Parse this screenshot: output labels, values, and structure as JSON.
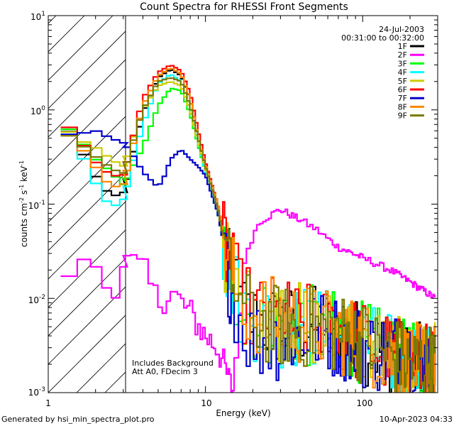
{
  "chart_data": {
    "type": "line",
    "title": "Count Spectra for RHESSI Front Segments",
    "xlabel": "Energy (keV)",
    "ylabel_main": "counts cm",
    "ylabel_sup1": "-2",
    "ylabel_mid": " s",
    "ylabel_sup2": "-1",
    "ylabel_mid2": " keV",
    "ylabel_sup3": "-1",
    "xscale": "log",
    "yscale": "log",
    "xlim": [
      1,
      300
    ],
    "ylim": [
      0.001,
      10
    ],
    "x_tick_labels": [
      "1",
      "10",
      "100"
    ],
    "y_tick_labels": [
      {
        "base": "10",
        "exp": "1"
      },
      {
        "base": "10",
        "exp": "0"
      },
      {
        "base": "10",
        "exp": "-1"
      },
      {
        "base": "10",
        "exp": "-2"
      },
      {
        "base": "10",
        "exp": "-3"
      }
    ],
    "hatched_region_keV": [
      1,
      3
    ],
    "date": "24-Jul-2003",
    "time_range": "00:31:00 to 00:32:00",
    "annotations": [
      "Includes Background",
      "Att A0, FDecim 3"
    ],
    "footer_left": "Generated by hsi_min_spectra_plot.pro",
    "footer_right": "10-Apr-2023 04:33",
    "series": [
      {
        "name": "1F",
        "color": "#000000",
        "kind": "thermal",
        "x": [
          1.2,
          1.5,
          2.0,
          2.5,
          3.0,
          4.0,
          5.0,
          6.0,
          7.0,
          8.0,
          9.0,
          10.0,
          12.0,
          14.0,
          17.0,
          20.0,
          30.0,
          50.0,
          80.0,
          120.0,
          200.0,
          290.0
        ],
        "values": [
          0.75,
          0.48,
          0.2,
          0.12,
          0.13,
          0.9,
          2.2,
          2.7,
          2.3,
          1.3,
          0.5,
          0.25,
          0.09,
          0.02,
          0.008,
          0.006,
          0.005,
          0.005,
          0.004,
          0.003,
          0.002,
          0.002
        ]
      },
      {
        "name": "2F",
        "color": "#ff00ff",
        "kind": "rear",
        "x": [
          1.2,
          1.5,
          2.0,
          2.5,
          3.0,
          4.0,
          5.0,
          6.0,
          8.0,
          10.0,
          12.0,
          15.0,
          18.0,
          22.0,
          30.0,
          40.0,
          50.0,
          70.0,
          100.0,
          150.0,
          200.0,
          290.0
        ],
        "values": [
          0.026,
          0.018,
          0.024,
          0.011,
          0.025,
          0.02,
          0.009,
          0.012,
          0.007,
          0.004,
          0.003,
          0.001,
          0.03,
          0.065,
          0.088,
          0.068,
          0.055,
          0.035,
          0.027,
          0.02,
          0.015,
          0.01
        ]
      },
      {
        "name": "3F",
        "color": "#00ff00",
        "kind": "thermal",
        "x": [
          1.2,
          1.5,
          2.0,
          2.5,
          3.0,
          4.0,
          5.0,
          6.0,
          7.0,
          8.0,
          9.0,
          10.0,
          12.0,
          14.0,
          17.0,
          20.0,
          30.0,
          50.0,
          80.0,
          120.0,
          200.0,
          290.0
        ],
        "values": [
          0.72,
          0.55,
          0.3,
          0.22,
          0.16,
          0.4,
          1.1,
          1.7,
          1.6,
          0.9,
          0.42,
          0.22,
          0.08,
          0.02,
          0.009,
          0.006,
          0.005,
          0.005,
          0.004,
          0.003,
          0.002,
          0.002
        ]
      },
      {
        "name": "4F",
        "color": "#00ffff",
        "kind": "thermal",
        "x": [
          1.2,
          1.5,
          2.0,
          2.5,
          3.0,
          4.0,
          5.0,
          6.0,
          7.0,
          8.0,
          9.0,
          10.0,
          12.0,
          14.0,
          17.0,
          20.0,
          30.0,
          50.0,
          80.0,
          120.0,
          200.0,
          290.0
        ],
        "values": [
          0.7,
          0.45,
          0.17,
          0.09,
          0.11,
          0.7,
          1.9,
          2.4,
          2.0,
          1.1,
          0.45,
          0.22,
          0.08,
          0.02,
          0.008,
          0.006,
          0.005,
          0.005,
          0.004,
          0.003,
          0.002,
          0.002
        ]
      },
      {
        "name": "5F",
        "color": "#cccc00",
        "kind": "thermal",
        "x": [
          1.2,
          1.5,
          2.0,
          2.5,
          3.0,
          4.0,
          5.0,
          6.0,
          7.0,
          8.0,
          9.0,
          10.0,
          12.0,
          14.0,
          17.0,
          20.0,
          30.0,
          50.0,
          80.0,
          120.0,
          200.0,
          290.0
        ],
        "values": [
          0.7,
          0.5,
          0.4,
          0.3,
          0.25,
          1.0,
          1.8,
          2.0,
          1.8,
          1.0,
          0.45,
          0.24,
          0.09,
          0.02,
          0.009,
          0.007,
          0.006,
          0.005,
          0.004,
          0.003,
          0.002,
          0.002
        ]
      },
      {
        "name": "6F",
        "color": "#ff0000",
        "kind": "thermal",
        "x": [
          1.2,
          1.5,
          2.0,
          2.5,
          3.0,
          4.0,
          5.0,
          6.0,
          7.0,
          8.0,
          9.0,
          10.0,
          12.0,
          14.0,
          17.0,
          20.0,
          30.0,
          50.0,
          80.0,
          120.0,
          200.0,
          290.0
        ],
        "values": [
          0.8,
          0.55,
          0.28,
          0.2,
          0.2,
          1.3,
          2.5,
          3.0,
          2.6,
          1.5,
          0.6,
          0.28,
          0.1,
          0.025,
          0.01,
          0.007,
          0.006,
          0.005,
          0.004,
          0.003,
          0.002,
          0.002
        ]
      },
      {
        "name": "7F",
        "color": "#0000cc",
        "kind": "blue",
        "x": [
          1.2,
          1.5,
          2.0,
          2.5,
          3.0,
          3.5,
          4.0,
          5.0,
          5.5,
          6.0,
          7.0,
          8.0,
          9.0,
          10.0,
          12.0,
          14.0,
          17.0,
          20.0,
          30.0,
          50.0,
          80.0,
          120.0,
          200.0,
          290.0
        ],
        "values": [
          0.55,
          0.55,
          0.6,
          0.5,
          0.45,
          0.32,
          0.22,
          0.15,
          0.2,
          0.3,
          0.38,
          0.3,
          0.25,
          0.2,
          0.08,
          0.02,
          0.006,
          0.004,
          0.004,
          0.005,
          0.004,
          0.003,
          0.003,
          0.002
        ]
      },
      {
        "name": "8F",
        "color": "#ff8800",
        "kind": "thermal",
        "x": [
          1.2,
          1.5,
          2.0,
          2.5,
          3.0,
          4.0,
          5.0,
          6.0,
          7.0,
          8.0,
          9.0,
          10.0,
          12.0,
          14.0,
          17.0,
          20.0,
          30.0,
          50.0,
          80.0,
          120.0,
          200.0,
          290.0
        ],
        "values": [
          0.6,
          0.48,
          0.25,
          0.15,
          0.16,
          1.1,
          2.3,
          2.8,
          2.4,
          1.3,
          0.5,
          0.26,
          0.1,
          0.025,
          0.009,
          0.007,
          0.006,
          0.005,
          0.004,
          0.003,
          0.002,
          0.002
        ]
      },
      {
        "name": "9F",
        "color": "#7a7a00",
        "kind": "thermal",
        "x": [
          1.2,
          1.5,
          2.0,
          2.5,
          3.0,
          4.0,
          5.0,
          6.0,
          7.0,
          8.0,
          9.0,
          10.0,
          12.0,
          14.0,
          17.0,
          20.0,
          30.0,
          50.0,
          80.0,
          120.0,
          200.0,
          290.0
        ],
        "values": [
          0.6,
          0.48,
          0.32,
          0.24,
          0.21,
          1.0,
          2.0,
          2.2,
          2.0,
          1.1,
          0.5,
          0.25,
          0.09,
          0.022,
          0.008,
          0.006,
          0.005,
          0.005,
          0.004,
          0.003,
          0.002,
          0.002
        ]
      }
    ]
  }
}
